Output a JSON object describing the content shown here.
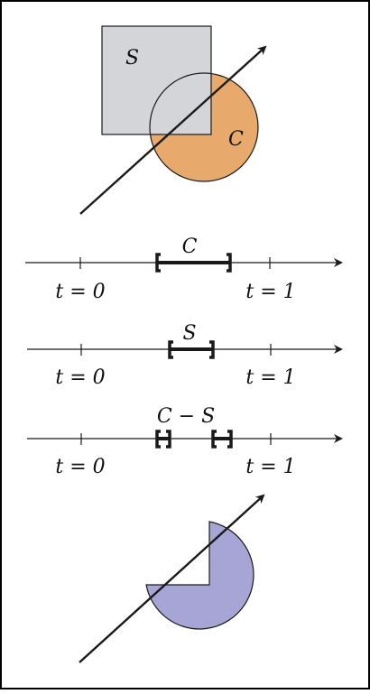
{
  "figure": {
    "top": {
      "square_label": "S",
      "circle_label": "C"
    },
    "lines": [
      {
        "label": "C",
        "tick_left": "t = 0",
        "tick_right": "t = 1"
      },
      {
        "label": "S",
        "tick_left": "t = 0",
        "tick_right": "t = 1"
      },
      {
        "label": "C − S",
        "tick_left": "t = 0",
        "tick_right": "t = 1"
      }
    ]
  },
  "colors": {
    "square_fill": "#d3d5d9",
    "circle_fill": "#e8a96c",
    "difference_fill": "#a7a5d5",
    "stroke": "#1a1a1a",
    "border": "#000000"
  }
}
